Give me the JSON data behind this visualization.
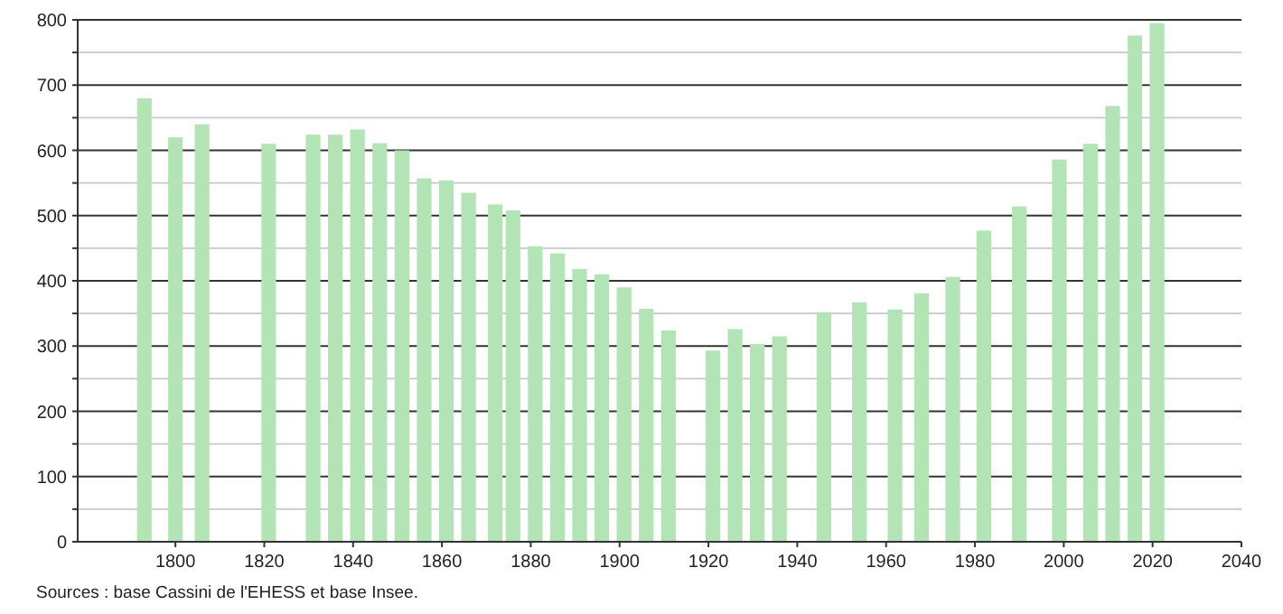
{
  "chart_data": {
    "type": "bar",
    "x": [
      1793,
      1800,
      1806,
      1821,
      1831,
      1836,
      1841,
      1846,
      1851,
      1856,
      1861,
      1866,
      1872,
      1876,
      1881,
      1886,
      1891,
      1896,
      1901,
      1906,
      1911,
      1921,
      1926,
      1931,
      1936,
      1946,
      1954,
      1962,
      1968,
      1975,
      1982,
      1990,
      1999,
      2006,
      2011,
      2016,
      2021
    ],
    "values": [
      680,
      620,
      640,
      610,
      624,
      624,
      632,
      611,
      600,
      557,
      554,
      535,
      517,
      508,
      453,
      442,
      418,
      410,
      390,
      357,
      324,
      293,
      326,
      303,
      315,
      352,
      367,
      356,
      381,
      406,
      477,
      514,
      586,
      610,
      668,
      776,
      795
    ],
    "color": "#b3e4b5",
    "xlim": [
      1778,
      2040
    ],
    "xticks": [
      1800,
      1820,
      1840,
      1860,
      1880,
      1900,
      1920,
      1940,
      1960,
      1980,
      2000,
      2020,
      2040
    ],
    "ylim": [
      0,
      800
    ],
    "yticks": [
      0,
      {
        "value": 50,
        "label": null
      },
      100,
      {
        "value": 150,
        "label": null
      },
      200,
      {
        "value": 250,
        "label": null
      },
      300,
      {
        "value": 350,
        "label": null
      },
      400,
      {
        "value": 450,
        "label": null
      },
      500,
      {
        "value": 550,
        "label": null
      },
      600,
      {
        "value": 650,
        "label": null
      },
      700,
      {
        "value": 750,
        "label": null
      },
      800
    ],
    "grid": true,
    "annotations": [
      "Sources : base Cassini de l'EHESS et base Insee."
    ]
  }
}
